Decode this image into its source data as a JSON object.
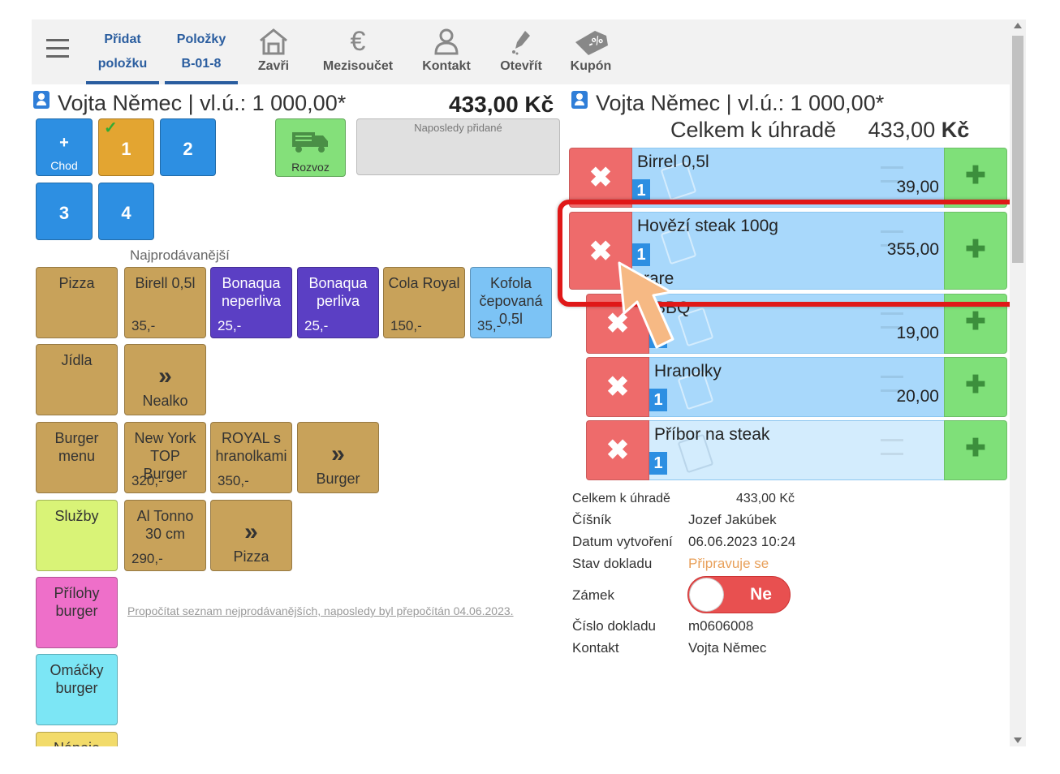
{
  "toolbar": {
    "add_item_line1": "Přidat",
    "add_item_line2": "položku",
    "items_line1": "Položky",
    "items_line2": "B-01-8",
    "close": "Zavři",
    "subtotal": "Mezisoučet",
    "contact": "Kontakt",
    "open": "Otevřít",
    "coupon": "Kupón"
  },
  "left": {
    "customer": "Vojta Němec | vl.ú.: 1 000,00*",
    "total": "433,00 Kč",
    "course_plus": "+",
    "course_label": "Chod",
    "courses": [
      "1",
      "2",
      "3",
      "4"
    ],
    "delivery_label": "Rozvoz",
    "recent_label": "Naposledy přidané",
    "bestsellers_label": "Najprodávanější",
    "recalc_link": "Propočítat seznam nejprodávanějších, naposledy byl přepočítán 04.06.2023."
  },
  "categories": [
    "Pizza",
    "Jídla",
    "Burger menu",
    "Služby",
    "Přílohy burger",
    "Omáčky burger",
    "Nápoje"
  ],
  "products": [
    {
      "name": "Birell 0,5l",
      "price": "35,-"
    },
    {
      "name": "Bonaqua neperliva",
      "price": "25,-"
    },
    {
      "name": "Bonaqua perliva",
      "price": "25,-"
    },
    {
      "name": "Cola Royal",
      "price": "150,-"
    },
    {
      "name": "Kofola čepovaná 0,5l",
      "price": "35,-"
    },
    {
      "name": "New York TOP Burger",
      "price": "320,-"
    },
    {
      "name": "ROYAL s hranolkami",
      "price": "350,-"
    },
    {
      "name": "Al Tonno 30 cm",
      "price": "290,-"
    }
  ],
  "folders": [
    "Nealko",
    "Burger",
    "Pizza"
  ],
  "right": {
    "customer": "Vojta Němec | vl.ú.: 1 000,00*",
    "total_label": "Celkem k úhradě",
    "total_value": "433,00",
    "currency": "Kč"
  },
  "order": [
    {
      "name": "Birrel 0,5l",
      "qty": "1",
      "price": "39,00",
      "note": ""
    },
    {
      "name": "Hovězí steak 100g",
      "qty": "1",
      "price": "355,00",
      "note": "rare"
    },
    {
      "name": "BBQ",
      "qty": "1",
      "price": "19,00",
      "note": ""
    },
    {
      "name": "Hranolky",
      "qty": "1",
      "price": "20,00",
      "note": ""
    },
    {
      "name": "Příbor na steak",
      "qty": "1",
      "price": "",
      "note": ""
    }
  ],
  "details": {
    "total_label": "Celkem k úhradě",
    "total_value": "433,00 Kč",
    "waiter_label": "Číšník",
    "waiter_value": "Jozef Jakúbek",
    "created_label": "Datum vytvoření",
    "created_value": "06.06.2023 10:24",
    "state_label": "Stav dokladu",
    "state_value": "Připravuje se",
    "lock_label": "Zámek",
    "lock_value": "Ne",
    "doc_label": "Číslo dokladu",
    "doc_value": "m0606008",
    "contact_label": "Kontakt",
    "contact_value": "Vojta Němec"
  },
  "colors": {
    "accent": "#2a5d9f",
    "state": "#e8a05a",
    "highlight": "#e01818"
  }
}
